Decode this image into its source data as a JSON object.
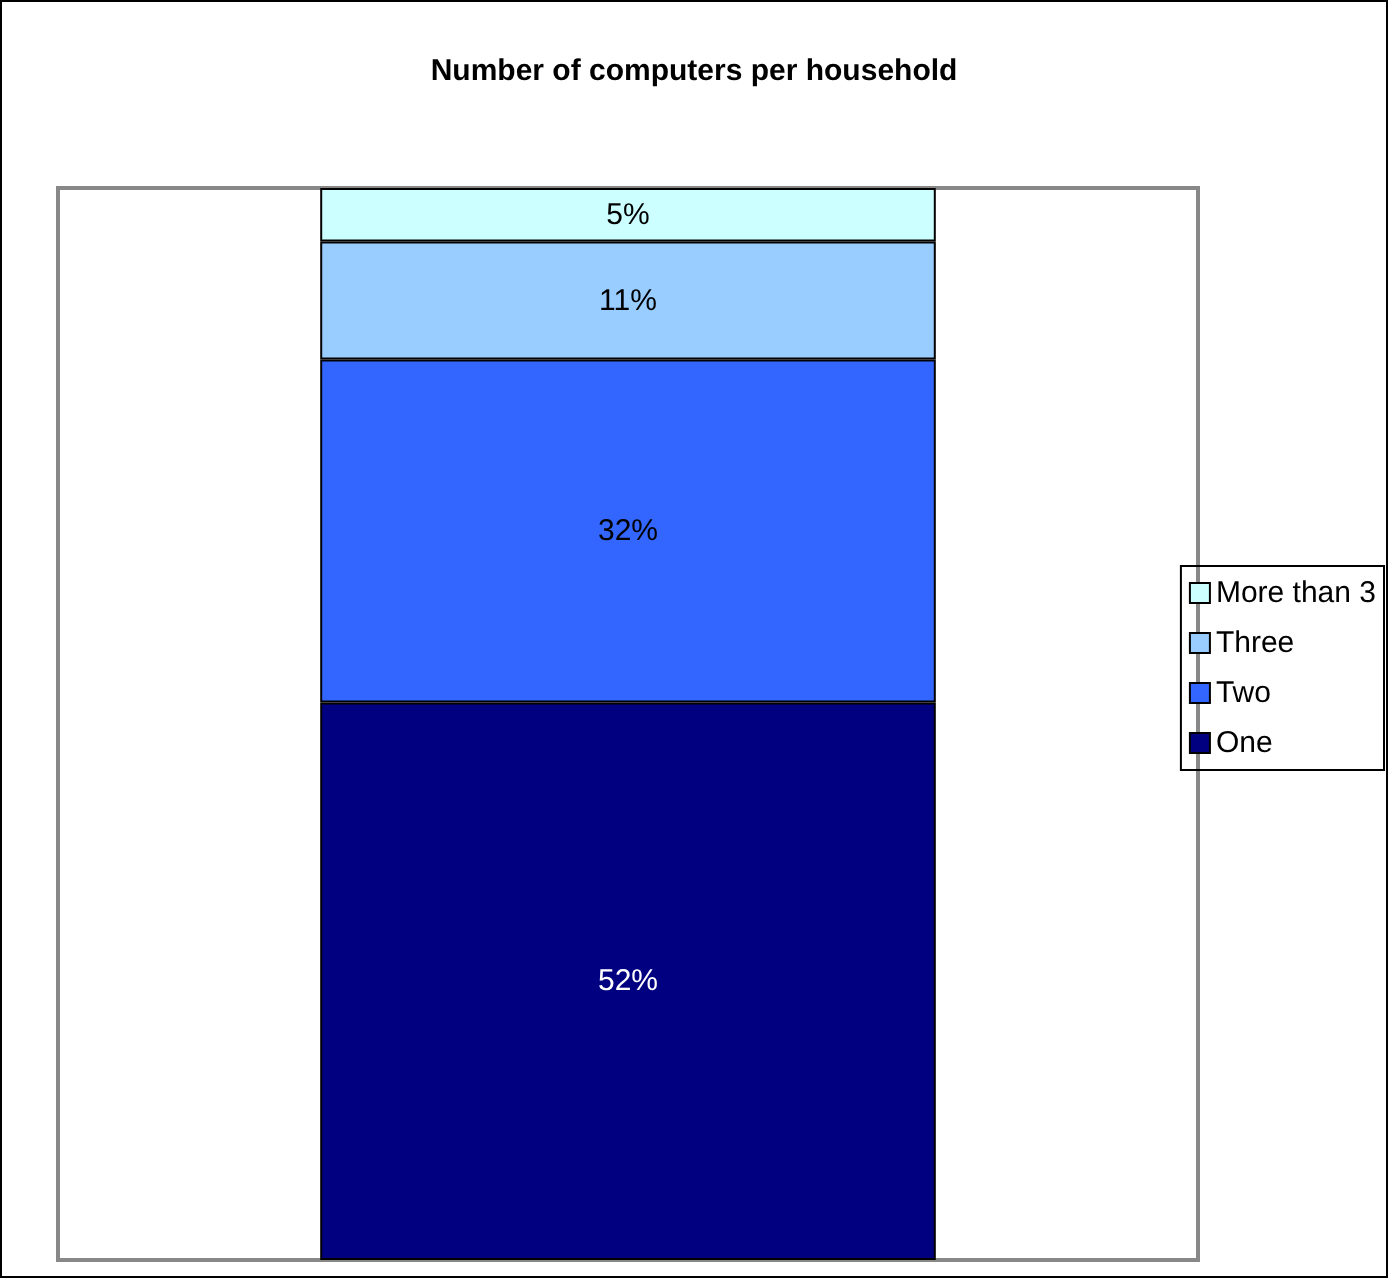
{
  "chart_data": {
    "type": "bar",
    "title": "Number of computers per household",
    "categories": [
      null
    ],
    "stacked": true,
    "ylim": [
      0,
      100
    ],
    "grid": false,
    "legend": "right",
    "series": [
      {
        "name": "One",
        "color": "#000080",
        "values": [
          52
        ],
        "value_labels": [
          "52%"
        ]
      },
      {
        "name": "Two",
        "color": "#3366ff",
        "values": [
          32
        ],
        "value_labels": [
          "32%"
        ]
      },
      {
        "name": "Three",
        "color": "#99ccff",
        "values": [
          11
        ],
        "value_labels": [
          "11%"
        ]
      },
      {
        "name": "More than 3",
        "color": "#ccffff",
        "values": [
          5
        ],
        "value_labels": [
          "5%"
        ]
      }
    ]
  }
}
